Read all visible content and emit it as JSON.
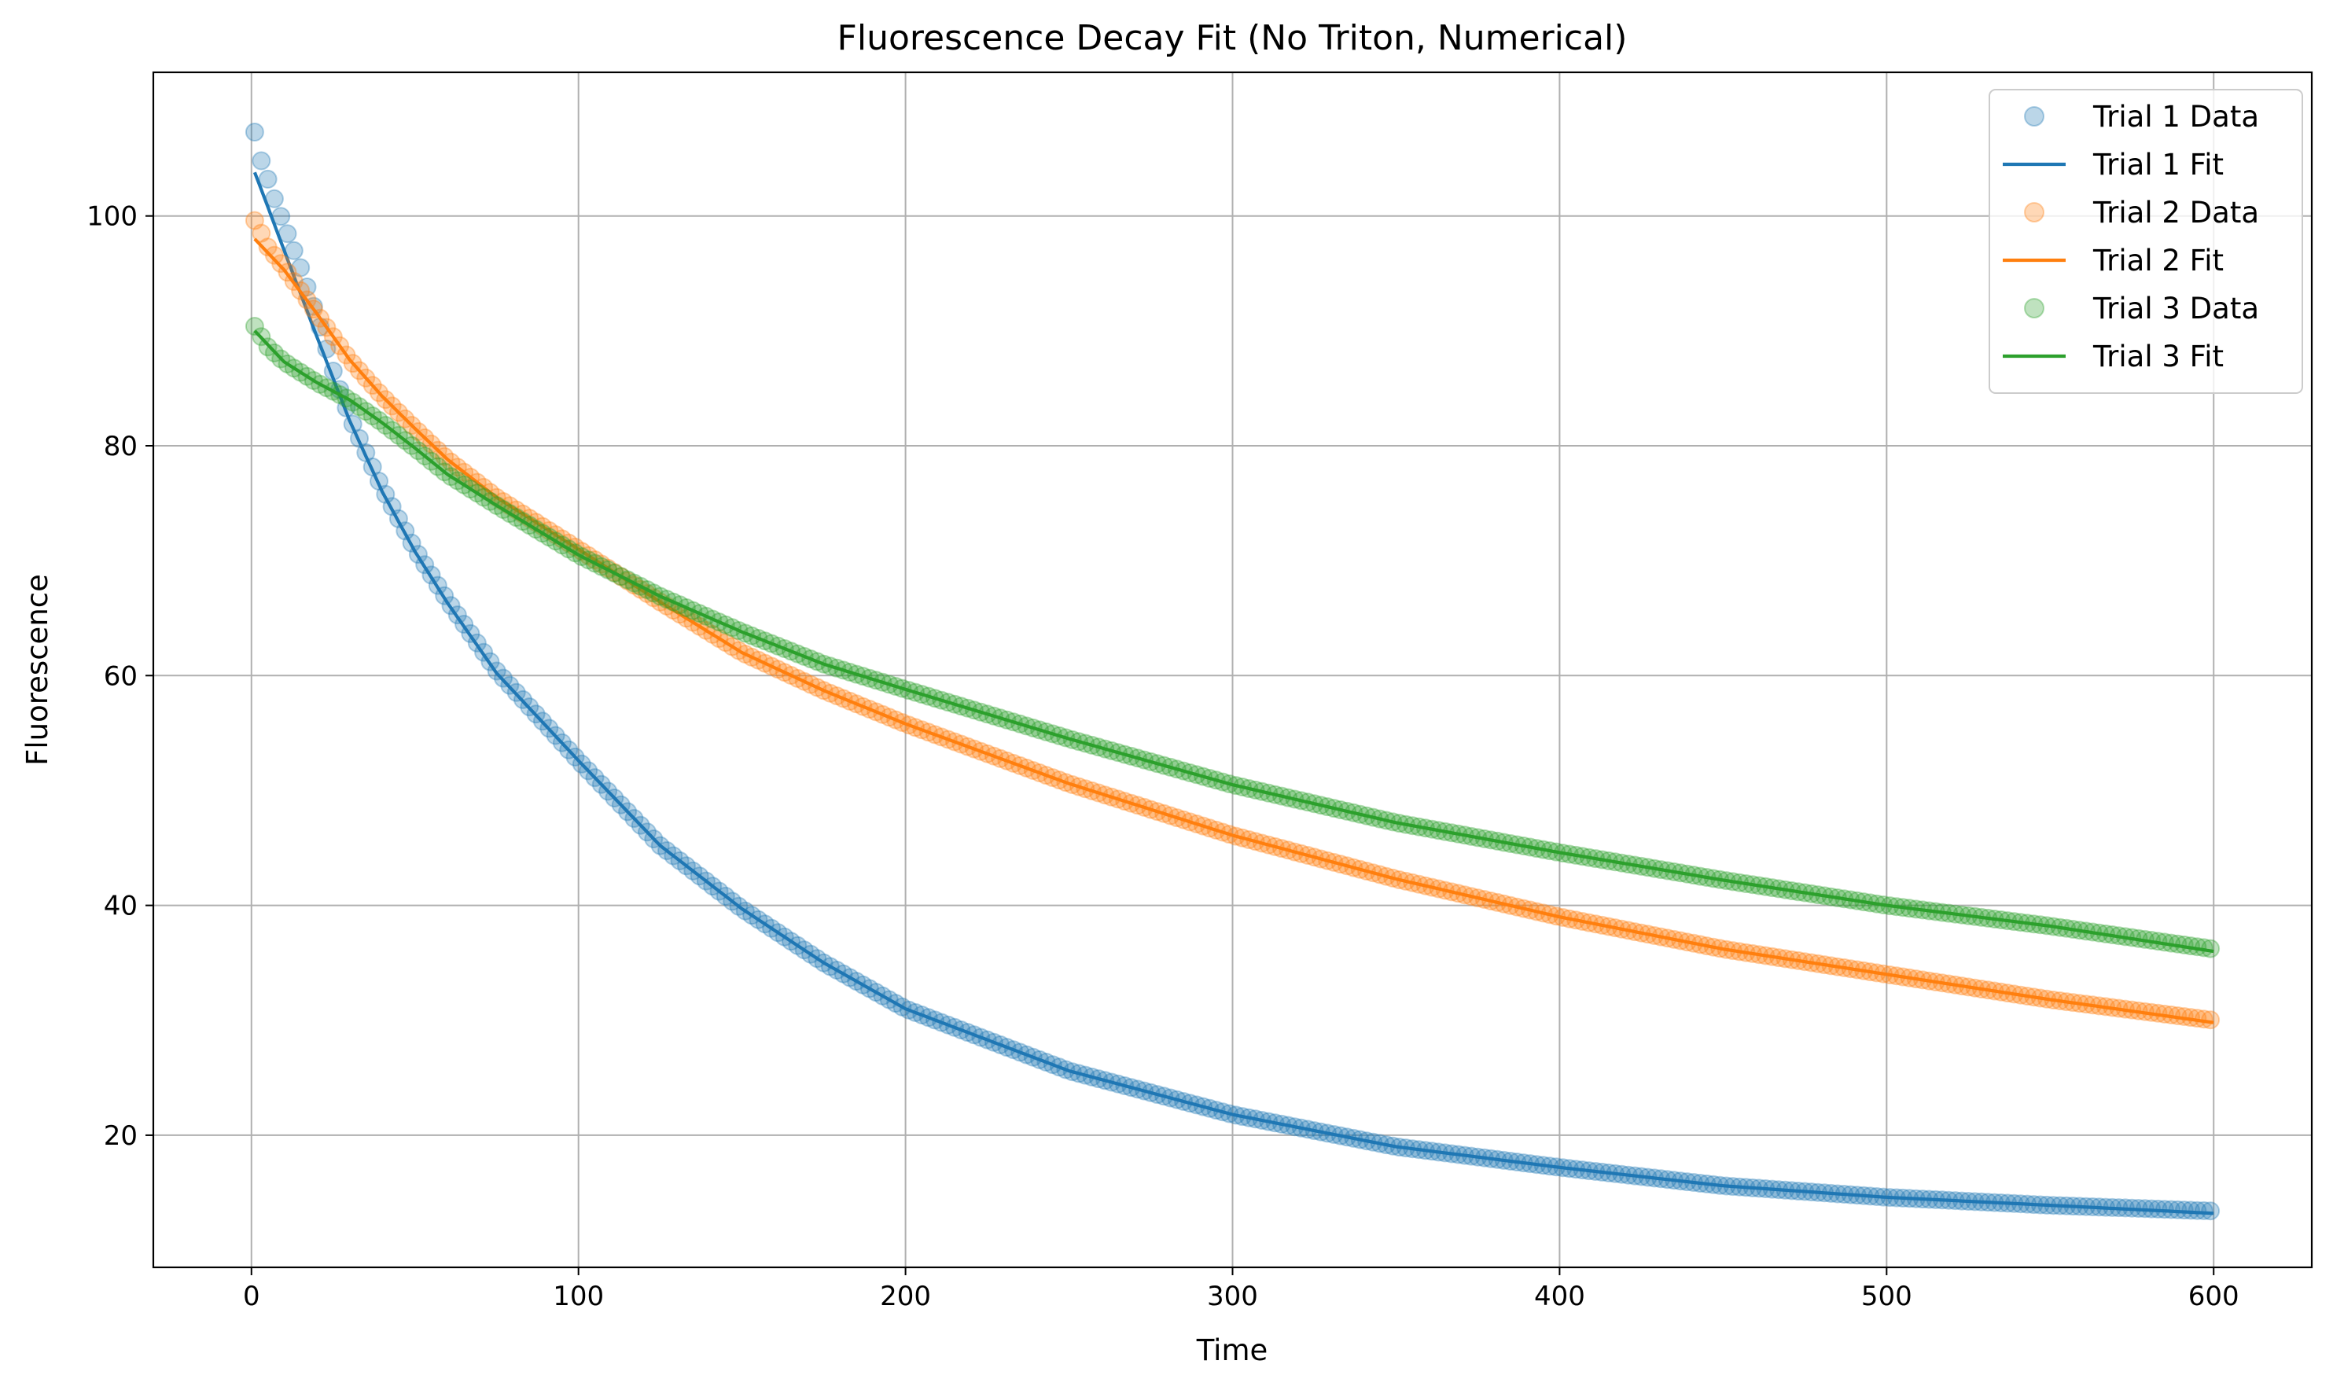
{
  "chart_data": {
    "type": "scatter",
    "title": "Fluorescence Decay Fit (No Triton, Numerical)",
    "xlabel": "Time",
    "ylabel": "Fluorescence",
    "xlim": [
      -30,
      630
    ],
    "ylim": [
      8.5,
      112.5
    ],
    "xticks": [
      0,
      100,
      200,
      300,
      400,
      500,
      600
    ],
    "yticks": [
      20,
      40,
      60,
      80,
      100
    ],
    "grid": true,
    "legend": "top-right",
    "x_range": [
      1,
      600
    ],
    "series": [
      {
        "name": "Trial 1 Data",
        "kind": "scatter",
        "color": "#1f77b4",
        "x": [
          1,
          2,
          3,
          5,
          7,
          10,
          15,
          20,
          25,
          30,
          40,
          50,
          60,
          75,
          100,
          125,
          150,
          175,
          200,
          250,
          300,
          350,
          400,
          450,
          500,
          550,
          600
        ],
        "y": [
          107.3,
          105.8,
          104.8,
          103.2,
          101.5,
          99.2,
          95.5,
          91.3,
          86.5,
          82.5,
          76.3,
          71.0,
          66.5,
          60.4,
          52.6,
          45.2,
          39.7,
          35.0,
          31.0,
          25.6,
          21.8,
          19.0,
          17.2,
          15.6,
          14.6,
          13.9,
          13.4
        ]
      },
      {
        "name": "Trial 1 Fit",
        "kind": "line",
        "color": "#1f77b4",
        "x": [
          1,
          5,
          10,
          20,
          30,
          40,
          50,
          60,
          75,
          100,
          125,
          150,
          175,
          200,
          250,
          300,
          350,
          400,
          450,
          500,
          550,
          600
        ],
        "y": [
          103.8,
          100.8,
          97.0,
          89.5,
          82.2,
          76.0,
          70.8,
          66.3,
          60.2,
          52.6,
          45.2,
          39.7,
          35.0,
          31.0,
          25.6,
          21.8,
          19.0,
          17.2,
          15.6,
          14.6,
          13.9,
          13.2
        ]
      },
      {
        "name": "Trial 2 Data",
        "kind": "scatter",
        "color": "#ff7f0e",
        "x": [
          1,
          2,
          3,
          5,
          10,
          20,
          30,
          40,
          50,
          60,
          75,
          100,
          125,
          150,
          175,
          200,
          250,
          300,
          350,
          400,
          450,
          500,
          550,
          600
        ],
        "y": [
          99.6,
          99.0,
          98.5,
          97.3,
          95.5,
          91.5,
          87.5,
          84.3,
          81.5,
          78.8,
          75.5,
          71.0,
          66.4,
          62.0,
          58.7,
          55.8,
          50.6,
          46.1,
          42.3,
          39.0,
          36.2,
          34.0,
          31.8,
          30.0
        ]
      },
      {
        "name": "Trial 2 Fit",
        "kind": "line",
        "color": "#ff7f0e",
        "x": [
          1,
          10,
          20,
          30,
          40,
          50,
          60,
          75,
          100,
          125,
          150,
          175,
          200,
          250,
          300,
          350,
          400,
          450,
          500,
          550,
          600
        ],
        "y": [
          98.0,
          95.3,
          91.5,
          87.5,
          84.3,
          81.5,
          78.8,
          75.5,
          71.0,
          66.4,
          62.0,
          58.7,
          55.8,
          50.6,
          46.1,
          42.3,
          39.0,
          36.2,
          34.0,
          31.8,
          29.8
        ]
      },
      {
        "name": "Trial 3 Data",
        "kind": "scatter",
        "color": "#2ca02c",
        "x": [
          1,
          2,
          3,
          5,
          10,
          20,
          30,
          40,
          50,
          60,
          75,
          100,
          125,
          150,
          175,
          200,
          250,
          300,
          350,
          400,
          450,
          500,
          550,
          600
        ],
        "y": [
          90.4,
          90.0,
          89.5,
          88.6,
          87.3,
          85.5,
          84.0,
          82.0,
          79.8,
          77.5,
          74.8,
          70.5,
          66.9,
          63.8,
          61.0,
          58.8,
          54.5,
          50.5,
          47.2,
          44.6,
          42.2,
          40.0,
          38.2,
          36.2
        ]
      },
      {
        "name": "Trial 3 Fit",
        "kind": "line",
        "color": "#2ca02c",
        "x": [
          1,
          10,
          20,
          30,
          40,
          50,
          60,
          75,
          100,
          125,
          150,
          175,
          200,
          250,
          300,
          350,
          400,
          450,
          500,
          550,
          600
        ],
        "y": [
          90.0,
          87.3,
          85.5,
          84.0,
          82.0,
          79.8,
          77.5,
          74.8,
          70.5,
          66.9,
          63.8,
          61.0,
          58.8,
          54.5,
          50.5,
          47.2,
          44.6,
          42.2,
          40.0,
          38.2,
          36.0
        ]
      }
    ]
  }
}
